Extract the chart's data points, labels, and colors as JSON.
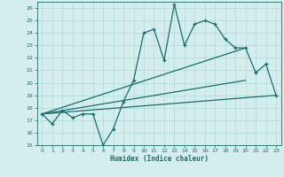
{
  "xlabel": "Humidex (Indice chaleur)",
  "x_values": [
    0,
    1,
    2,
    3,
    4,
    5,
    6,
    7,
    8,
    9,
    10,
    11,
    12,
    13,
    14,
    15,
    16,
    17,
    18,
    19,
    20,
    21,
    22,
    23
  ],
  "line1_y": [
    17.5,
    16.7,
    17.8,
    17.2,
    17.5,
    17.5,
    15.0,
    16.3,
    18.5,
    20.2,
    24.0,
    24.3,
    21.8,
    26.3,
    23.0,
    24.7,
    25.0,
    24.7,
    23.5,
    22.8,
    22.8,
    20.8,
    21.5,
    19.0
  ],
  "trend1_x": [
    0,
    20
  ],
  "trend1_y": [
    17.5,
    22.8
  ],
  "trend2_x": [
    0,
    23
  ],
  "trend2_y": [
    17.5,
    19.0
  ],
  "trend3_x": [
    0,
    20
  ],
  "trend3_y": [
    17.5,
    20.2
  ],
  "line_color": "#1b6b6b",
  "bg_color": "#d4eeee",
  "grid_color": "#b0d8d8",
  "ylim": [
    15,
    26.5
  ],
  "xlim": [
    -0.5,
    23.5
  ],
  "yticks": [
    15,
    16,
    17,
    18,
    19,
    20,
    21,
    22,
    23,
    24,
    25,
    26
  ],
  "xticks": [
    0,
    1,
    2,
    3,
    4,
    5,
    6,
    7,
    8,
    9,
    10,
    11,
    12,
    13,
    14,
    15,
    16,
    17,
    18,
    19,
    20,
    21,
    22,
    23
  ]
}
